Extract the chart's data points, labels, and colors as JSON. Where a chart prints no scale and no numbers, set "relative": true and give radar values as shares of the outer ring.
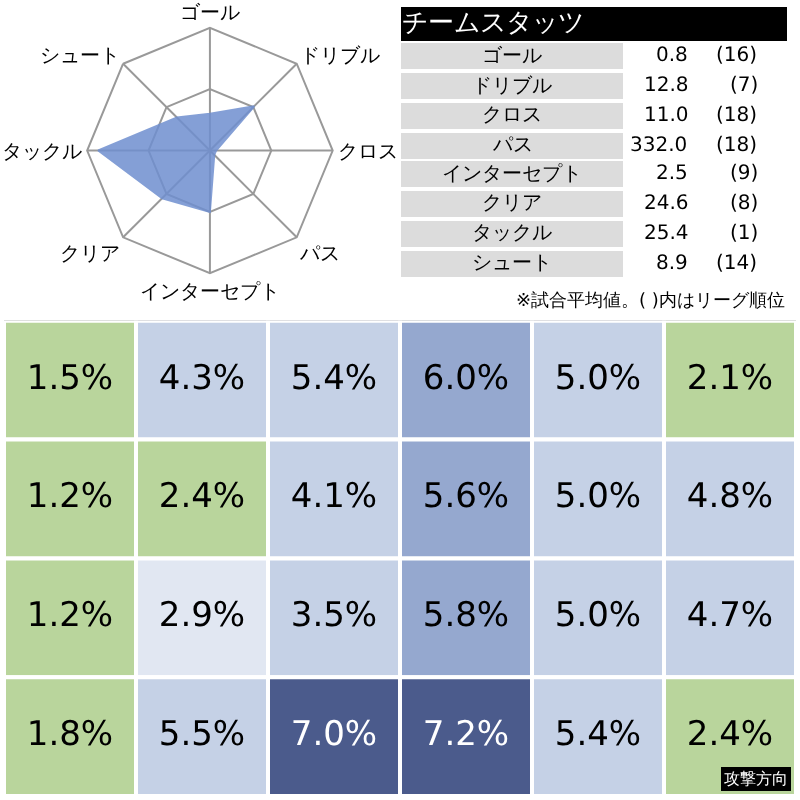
{
  "chart_data": [
    {
      "type": "radar",
      "relative": true,
      "categories": [
        "ゴール",
        "ドリブル",
        "クロス",
        "パス",
        "インターセプト",
        "クリア",
        "タックル",
        "シュート"
      ],
      "series": [
        {
          "color": "#6f8fcf",
          "values": [
            0.3,
            0.51,
            0.05,
            0.05,
            0.5,
            0.55,
            0.91,
            0.38
          ]
        }
      ]
    },
    {
      "type": "other",
      "title": "チームスタッツ",
      "categories": [
        "ゴール",
        "ドリブル",
        "クロス",
        "パス",
        "インターセプト",
        "クリア",
        "タックル",
        "シュート"
      ],
      "cell_labels": [
        [
          "0.8",
          "(16)"
        ],
        [
          "12.8",
          "(7)"
        ],
        [
          "11.0",
          "(18)"
        ],
        [
          "332.0",
          "(18)"
        ],
        [
          "2.5",
          "(9)"
        ],
        [
          "24.6",
          "(8)"
        ],
        [
          "25.4",
          "(1)"
        ],
        [
          "8.9",
          "(14)"
        ]
      ],
      "annotations": [
        "※試合平均値。( )内はリーグ順位"
      ]
    },
    {
      "type": "heatmap",
      "categories": [
        null,
        null,
        null,
        null,
        null,
        null
      ],
      "y_categories": [
        null,
        null,
        null,
        null
      ],
      "cells": [
        [
          1.5,
          4.3,
          5.4,
          6.0,
          5.0,
          2.1
        ],
        [
          1.2,
          2.4,
          4.1,
          5.6,
          5.0,
          4.8
        ],
        [
          1.2,
          2.9,
          3.5,
          5.8,
          5.0,
          4.7
        ],
        [
          1.8,
          5.5,
          7.0,
          7.2,
          5.4,
          2.4
        ]
      ],
      "cell_labels": [
        [
          "1.5%",
          "4.3%",
          "5.4%",
          "6.0%",
          "5.0%",
          "2.1%"
        ],
        [
          "1.2%",
          "2.4%",
          "4.1%",
          "5.6%",
          "5.0%",
          "4.8%"
        ],
        [
          "1.2%",
          "2.9%",
          "3.5%",
          "5.8%",
          "5.0%",
          "4.7%"
        ],
        [
          "1.8%",
          "5.5%",
          "7.0%",
          "7.2%",
          "5.4%",
          "2.4%"
        ]
      ],
      "annotations": [
        "攻撃方向"
      ]
    }
  ]
}
